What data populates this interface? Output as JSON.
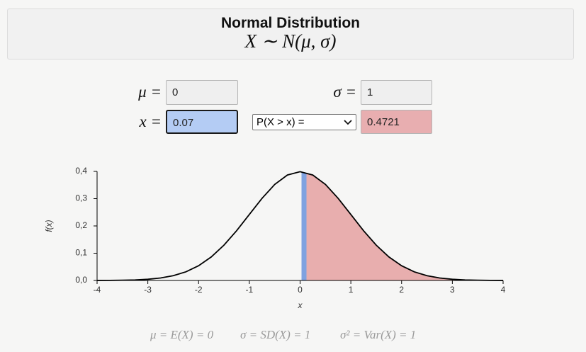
{
  "header": {
    "title": "Normal Distribution",
    "formula": "X ∼ N(μ, σ)"
  },
  "inputs": {
    "mu": {
      "label": "μ =",
      "value": "0"
    },
    "sigma": {
      "label": "σ =",
      "value": "1"
    },
    "x": {
      "label": "x =",
      "value": "0.07"
    },
    "select": "P(X > x) =",
    "result": "0.4721"
  },
  "chart_data": {
    "type": "line",
    "xlabel": "x",
    "ylabel": "f(x)",
    "x": [
      -4,
      -3.75,
      -3.5,
      -3.25,
      -3,
      -2.75,
      -2.5,
      -2.25,
      -2,
      -1.75,
      -1.5,
      -1.25,
      -1,
      -0.75,
      -0.5,
      -0.25,
      0,
      0.25,
      0.5,
      0.75,
      1,
      1.25,
      1.5,
      1.75,
      2,
      2.25,
      2.5,
      2.75,
      3,
      3.25,
      3.5,
      3.75,
      4
    ],
    "values": [
      0.0001,
      0.0004,
      0.0009,
      0.002,
      0.0044,
      0.0091,
      0.0175,
      0.0317,
      0.054,
      0.0863,
      0.1295,
      0.1826,
      0.242,
      0.3011,
      0.3521,
      0.3867,
      0.3989,
      0.3867,
      0.3521,
      0.3011,
      0.242,
      0.1826,
      0.1295,
      0.0863,
      0.054,
      0.0317,
      0.0175,
      0.0091,
      0.0044,
      0.002,
      0.0009,
      0.0004,
      0.0001
    ],
    "color": "#000000",
    "shade_color": "#e8aeae",
    "marker_color": "#7fa2e0",
    "xlim": [
      -4,
      4
    ],
    "ylim": [
      0,
      0.4
    ],
    "xticks": [
      -4,
      -3,
      -2,
      -1,
      0,
      1,
      2,
      3,
      4
    ],
    "yticks": [
      {
        "value": 0,
        "label": "0,0"
      },
      {
        "value": 0.1,
        "label": "0,1"
      },
      {
        "value": 0.2,
        "label": "0,2"
      },
      {
        "value": 0.3,
        "label": "0,3"
      },
      {
        "value": 0.4,
        "label": "0,4"
      }
    ]
  },
  "footer": [
    "μ = E(X) = 0",
    "σ = SD(X) = 1",
    "σ² = Var(X) = 1"
  ]
}
